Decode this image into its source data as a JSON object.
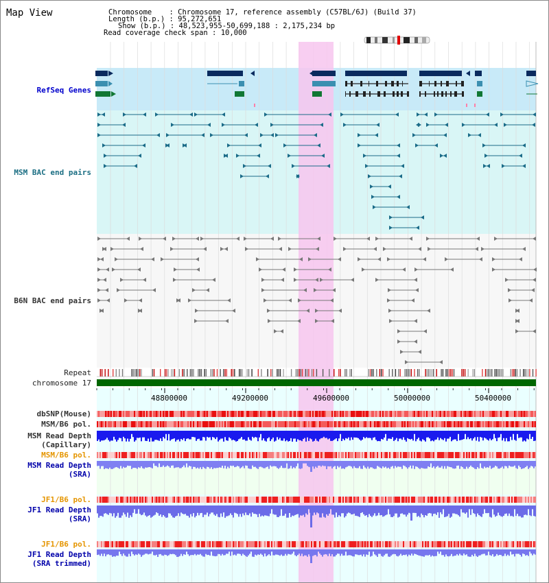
{
  "view": {
    "title": "Map View"
  },
  "info": {
    "chromosome_label": "Chromosome",
    "chromosome_value": "Chromosome 17, reference assembly (C57BL/6J) (Build 37)",
    "length_label": "Length (b.p.)",
    "length_value": "95,272,651",
    "show_label": "Show (b.p.)",
    "show_value": "48,523,955-50,699,188 : 2,175,234 bp",
    "span_label": "Read coverage check span",
    "span_value": "10,000"
  },
  "tracks": {
    "refseq": "RefSeq Genes",
    "msm_bac": "MSM BAC end pairs",
    "b6n_bac": "B6N BAC end pairs",
    "repeat": "Repeat",
    "chromosome": "chromosome 17",
    "dbsnp": "dbSNP(Mouse)",
    "msm_b6_pol_1": "MSM/B6 pol.",
    "msm_read_depth_cap_1": "MSM Read Depth",
    "msm_read_depth_cap_2": "(Capillary)",
    "msm_b6_pol_2": "MSM/B6 pol.",
    "msm_read_depth_sra_1": "MSM Read Depth",
    "msm_read_depth_sra_2": "(SRA)",
    "jf1_b6_pol_1": "JF1/B6 pol.",
    "jf1_read_depth_1": "JF1 Read Depth",
    "jf1_read_depth_2": "(SRA)",
    "jf1_b6_pol_2": "JF1/B6 pol.",
    "jf1_read_depth_trim_1": "JF1 Read Depth",
    "jf1_read_depth_trim_2": "(SRA trimmed)"
  },
  "axis": {
    "ticks": [
      "48800000",
      "49200000",
      "49600000",
      "50000000",
      "50400000"
    ]
  },
  "colors": {
    "highlight": "#f7c6ef",
    "refseq_bg": "#c8eaf8",
    "msm_bg": "#d9f6f6",
    "gene_dark": "#0a2a5e",
    "gene_mid": "#3b8fb0",
    "gene_green": "#117733",
    "chromosome_bar": "#006600",
    "depth_blue": "#1a1aee",
    "depth_light": "#7f7ff2"
  }
}
